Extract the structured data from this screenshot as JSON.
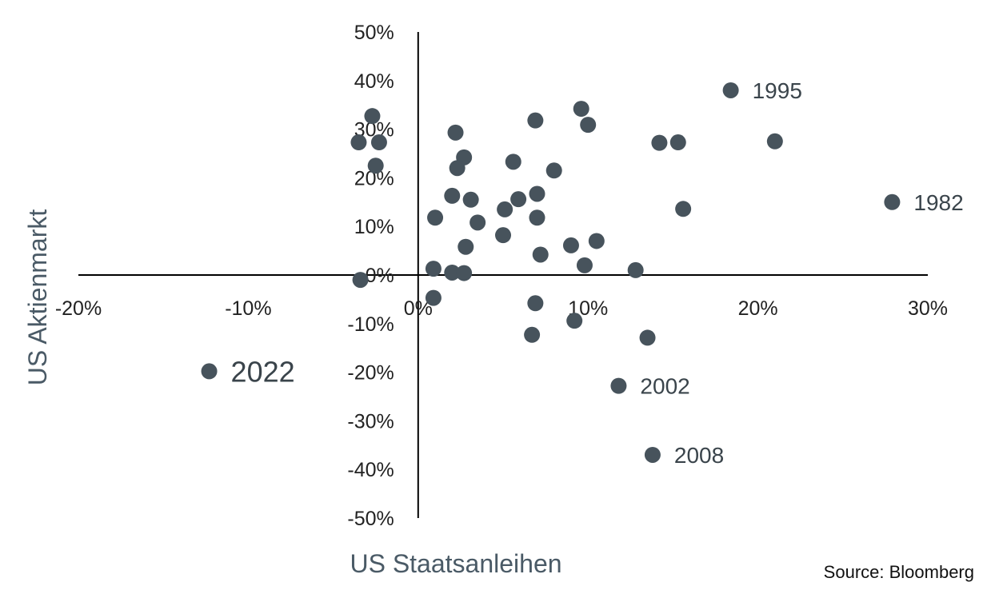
{
  "chart_data": {
    "type": "scatter",
    "xlabel": "US Staatsanleihen",
    "ylabel": "US Aktienmarkt",
    "source": "Source: Bloomberg",
    "xlim": [
      -20,
      30
    ],
    "ylim": [
      -50,
      50
    ],
    "x_ticks": [
      -20,
      -10,
      0,
      10,
      20,
      30
    ],
    "x_tick_labels": [
      "-20%",
      "-10%",
      "0%",
      "10%",
      "20%",
      "30%"
    ],
    "y_ticks": [
      50,
      40,
      30,
      20,
      10,
      0,
      -10,
      -20,
      -30,
      -40,
      -50
    ],
    "y_tick_labels": [
      "50%",
      "40%",
      "30%",
      "20%",
      "10%",
      "0%",
      "-10%",
      "-20%",
      "-30%",
      "-40%",
      "-50%"
    ],
    "grid": false,
    "color": "#47535c",
    "points": [
      {
        "x": 18.4,
        "y": 38.0,
        "label": "1995"
      },
      {
        "x": 27.9,
        "y": 15.0,
        "label": "1982"
      },
      {
        "x": -12.3,
        "y": -19.8,
        "label": "2022"
      },
      {
        "x": 11.8,
        "y": -22.8,
        "label": "2002"
      },
      {
        "x": 13.8,
        "y": -37.0,
        "label": "2008"
      },
      {
        "x": -2.7,
        "y": 32.7
      },
      {
        "x": -3.5,
        "y": 27.3
      },
      {
        "x": -2.3,
        "y": 27.3
      },
      {
        "x": -2.5,
        "y": 22.5
      },
      {
        "x": -3.4,
        "y": -1.0
      },
      {
        "x": 2.2,
        "y": 29.3
      },
      {
        "x": 2.7,
        "y": 24.2
      },
      {
        "x": 2.3,
        "y": 22.0
      },
      {
        "x": 2.0,
        "y": 16.3
      },
      {
        "x": 3.1,
        "y": 15.5
      },
      {
        "x": 1.0,
        "y": 11.8
      },
      {
        "x": 3.5,
        "y": 10.8
      },
      {
        "x": 2.8,
        "y": 5.8
      },
      {
        "x": 0.9,
        "y": 1.3
      },
      {
        "x": 2.0,
        "y": 0.5
      },
      {
        "x": 2.7,
        "y": 0.4
      },
      {
        "x": 0.9,
        "y": -4.7
      },
      {
        "x": 6.9,
        "y": 31.8
      },
      {
        "x": 5.6,
        "y": 23.3
      },
      {
        "x": 8.0,
        "y": 21.5
      },
      {
        "x": 7.0,
        "y": 16.7
      },
      {
        "x": 5.9,
        "y": 15.6
      },
      {
        "x": 5.1,
        "y": 13.5
      },
      {
        "x": 7.0,
        "y": 11.8
      },
      {
        "x": 5.0,
        "y": 8.2
      },
      {
        "x": 7.2,
        "y": 4.2
      },
      {
        "x": 6.9,
        "y": -5.8
      },
      {
        "x": 6.7,
        "y": -12.3
      },
      {
        "x": 9.6,
        "y": 34.2
      },
      {
        "x": 10.0,
        "y": 30.9
      },
      {
        "x": 9.0,
        "y": 6.1
      },
      {
        "x": 10.5,
        "y": 7.0
      },
      {
        "x": 9.8,
        "y": 2.0
      },
      {
        "x": 9.2,
        "y": -9.4
      },
      {
        "x": 12.8,
        "y": 1.0
      },
      {
        "x": 13.5,
        "y": -12.9
      },
      {
        "x": 14.2,
        "y": 27.2
      },
      {
        "x": 15.3,
        "y": 27.3
      },
      {
        "x": 15.6,
        "y": 13.6
      },
      {
        "x": 21.0,
        "y": 27.5
      }
    ]
  }
}
